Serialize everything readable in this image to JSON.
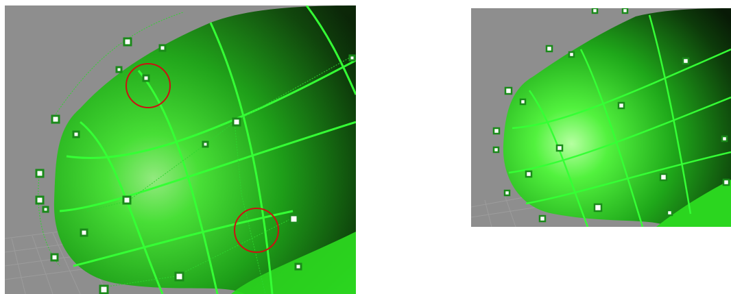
{
  "colors": {
    "viewport_background": "#8e8e8e",
    "grid_line": "#a3a3a3",
    "surface_light": "#7dff6a",
    "surface_mid": "#22d01e",
    "surface_dark": "#0f2a0b",
    "isocurve": "#33ff33",
    "control_point_fill": "#ffffff",
    "control_point_border": "#1a7a1a",
    "highlight_circle": "#cc1111",
    "page_background": "#ffffff"
  },
  "icons": {
    "control_point": "square-handle-icon",
    "highlight": "red-circle-marker"
  },
  "left_viewport": {
    "highlight_markers": 2
  },
  "right_viewport": {
    "highlight_markers": 0
  }
}
